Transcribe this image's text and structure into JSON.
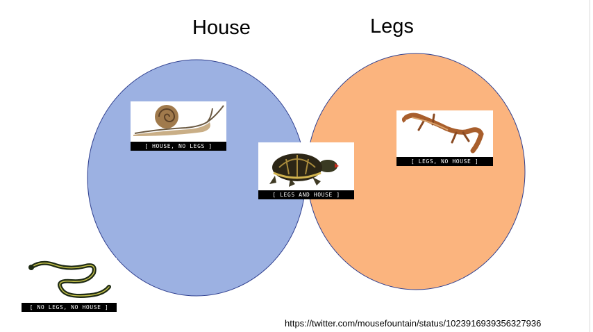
{
  "venn": {
    "sets": [
      {
        "label": "House",
        "fill": "#9cb1e2"
      },
      {
        "label": "Legs",
        "fill": "#fbb47e"
      }
    ],
    "overlap_fill": "#a18da3",
    "outline_color": "#2f3f8f"
  },
  "regions": {
    "house_only": {
      "caption": "[ HOUSE, NO LEGS ]",
      "image": "snail"
    },
    "both": {
      "caption": "[ LEGS AND HOUSE ]",
      "image": "turtle"
    },
    "legs_only": {
      "caption": "[ LEGS, NO HOUSE ]",
      "image": "lizard"
    },
    "neither": {
      "caption": "[ NO LEGS, NO HOUSE ]",
      "image": "snake"
    }
  },
  "source": "https://twitter.com/mousefountain/status/1023916939356327936"
}
